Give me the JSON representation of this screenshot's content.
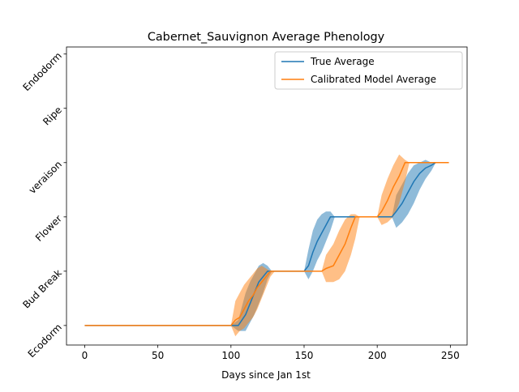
{
  "chart_data": {
    "type": "line",
    "title": "Cabernet_Sauvignon Average Phenology",
    "x_label": "Days since Jan 1st",
    "xlim": [
      -12.45,
      261.45
    ],
    "xticks": [
      0,
      50,
      100,
      150,
      200,
      250
    ],
    "ylim": [
      -0.36,
      5.13
    ],
    "yticks": [
      {
        "value": 0,
        "label": "Ecodorm"
      },
      {
        "value": 1,
        "label": "Bud Break"
      },
      {
        "value": 2,
        "label": "Flower"
      },
      {
        "value": 3,
        "label": "veraison"
      },
      {
        "value": 4,
        "label": "Ripe"
      },
      {
        "value": 5,
        "label": "Endodorm"
      }
    ],
    "legend": "upper right",
    "series": [
      {
        "name": "True Average",
        "color": "#1f77b4",
        "x": [
          0,
          100,
          105,
          110,
          113,
          116,
          119,
          122,
          125,
          128,
          150,
          153,
          156,
          159,
          162,
          165,
          168,
          171,
          210,
          213,
          217,
          221,
          225,
          229,
          233,
          237,
          240
        ],
        "values": [
          0,
          0,
          0,
          0.2,
          0.4,
          0.6,
          0.8,
          0.9,
          1,
          1,
          1,
          1.1,
          1.35,
          1.55,
          1.7,
          1.85,
          2,
          2,
          2,
          2.1,
          2.25,
          2.45,
          2.65,
          2.8,
          2.9,
          2.95,
          3
        ],
        "lower": [
          0,
          0,
          -0.1,
          -0.1,
          0.05,
          0.2,
          0.4,
          0.6,
          0.85,
          1,
          1,
          0.85,
          1.0,
          1.2,
          1.35,
          1.55,
          1.75,
          2,
          2,
          1.8,
          1.9,
          2.05,
          2.25,
          2.5,
          2.7,
          2.85,
          3
        ],
        "upper": [
          0,
          0,
          0.1,
          0.6,
          0.8,
          0.95,
          1.1,
          1.15,
          1.1,
          1,
          1,
          1.4,
          1.75,
          1.95,
          2.05,
          2.1,
          2.1,
          2,
          2,
          2.4,
          2.6,
          2.8,
          2.95,
          3.0,
          3.05,
          3.0,
          3
        ]
      },
      {
        "name": "Calibrated Model Average",
        "color": "#ff7f0e",
        "x": [
          0,
          100,
          103,
          106,
          109,
          112,
          115,
          118,
          121,
          124,
          127,
          130,
          162,
          165,
          170,
          174,
          178,
          182,
          185,
          188,
          200,
          203,
          207,
          211,
          215,
          219,
          222,
          249
        ],
        "values": [
          0,
          0,
          0.1,
          0.15,
          0.3,
          0.45,
          0.55,
          0.7,
          0.8,
          0.9,
          1,
          1,
          1,
          1.05,
          1.1,
          1.3,
          1.5,
          1.8,
          2,
          2,
          2,
          2.1,
          2.3,
          2.55,
          2.75,
          3,
          3,
          3
        ],
        "lower": [
          0,
          0,
          -0.2,
          -0.1,
          -0.05,
          0.05,
          0.15,
          0.3,
          0.5,
          0.7,
          0.9,
          1,
          1,
          0.8,
          0.8,
          0.85,
          1.0,
          1.3,
          1.6,
          2,
          2,
          1.85,
          1.9,
          2.0,
          2.25,
          2.65,
          3,
          3
        ],
        "upper": [
          0,
          0,
          0.45,
          0.6,
          0.75,
          0.85,
          0.95,
          1.05,
          1.1,
          1.05,
          1.0,
          1,
          1,
          1.3,
          1.5,
          1.75,
          1.95,
          2.05,
          2.05,
          2,
          2,
          2.4,
          2.7,
          2.95,
          3.15,
          3.05,
          3,
          3
        ]
      }
    ]
  }
}
